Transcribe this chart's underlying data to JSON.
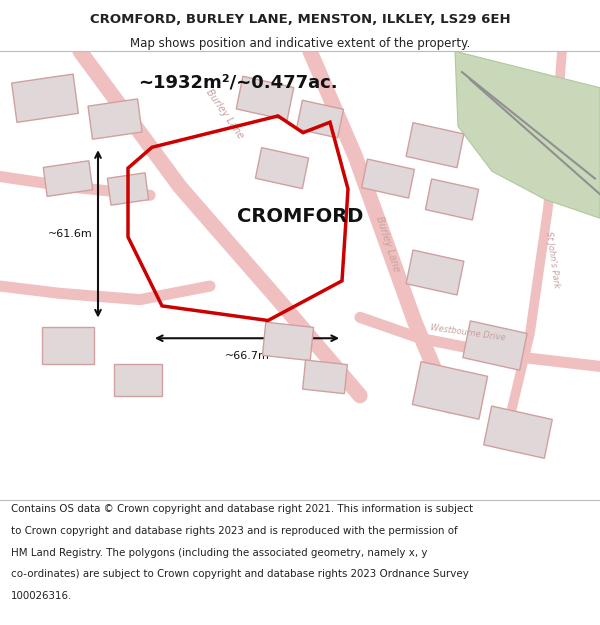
{
  "title_line1": "CROMFORD, BURLEY LANE, MENSTON, ILKLEY, LS29 6EH",
  "title_line2": "Map shows position and indicative extent of the property.",
  "area_label": "~1932m²/~0.477ac.",
  "property_label": "CROMFORD",
  "dim_width": "~66.7m",
  "dim_height": "~61.6m",
  "footer_lines": [
    "Contains OS data © Crown copyright and database right 2021. This information is subject",
    "to Crown copyright and database rights 2023 and is reproduced with the permission of",
    "HM Land Registry. The polygons (including the associated geometry, namely x, y",
    "co-ordinates) are subject to Crown copyright and database rights 2023 Ordnance Survey",
    "100026316."
  ],
  "bg_color": "#f5f0f0",
  "plot_stroke": "#cc0000",
  "green_area_color": "#c8d8b8",
  "road_color": "#f0c0c0",
  "building_fill": "#e0d8d8",
  "building_stroke": "#d0a0a0",
  "road_label_color": "#c8a0a0",
  "title_color": "#222222",
  "footer_color": "#222222",
  "arrow_color": "#111111"
}
